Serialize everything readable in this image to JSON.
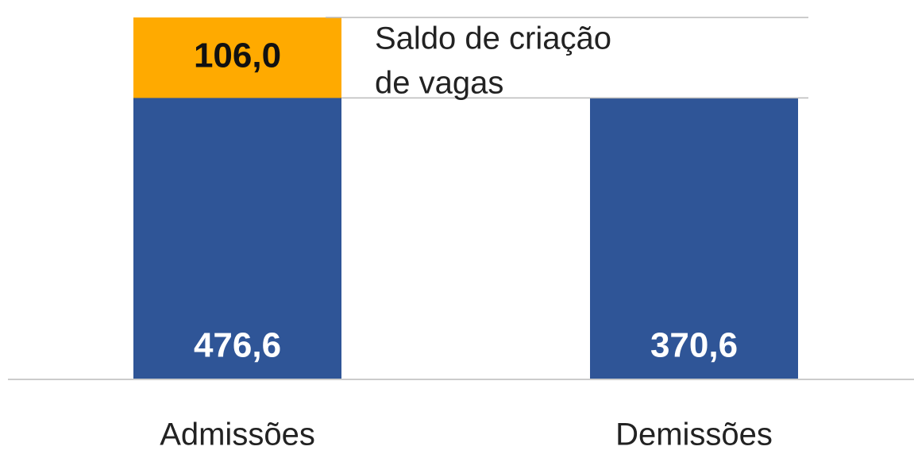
{
  "chart_data": {
    "type": "bar",
    "categories": [
      "Admissões",
      "Demissões"
    ],
    "values": [
      476.6,
      370.6
    ],
    "value_labels": [
      "476,6",
      "370,6"
    ],
    "color": "#2f5597",
    "balance": {
      "label": "Saldo de criação de vagas",
      "value": 106.0,
      "value_label": "106,0",
      "color": "#ffaa00"
    },
    "ylim": [
      0,
      476.6
    ]
  }
}
